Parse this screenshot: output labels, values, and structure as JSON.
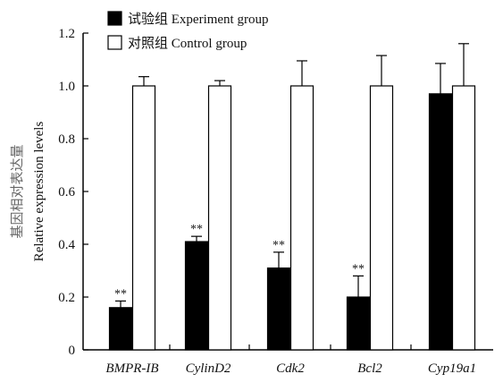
{
  "chart_data": {
    "type": "bar",
    "categories": [
      "BMPR-IB",
      "CylinD2",
      "Cdk2",
      "Bcl2",
      "Cyp19a1"
    ],
    "series": [
      {
        "name": "试验组 Experiment group",
        "values": [
          0.16,
          0.41,
          0.31,
          0.2,
          0.97
        ],
        "errors": [
          0.025,
          0.02,
          0.06,
          0.08,
          0.115
        ],
        "fill": "#000000",
        "significance": [
          "**",
          "**",
          "**",
          "**",
          ""
        ]
      },
      {
        "name": "对照组 Control group",
        "values": [
          1.0,
          1.0,
          1.0,
          1.0,
          1.0
        ],
        "errors": [
          0.035,
          0.02,
          0.095,
          0.115,
          0.16
        ],
        "fill": "#ffffff"
      }
    ],
    "ylabel_cn": "基因相对表达量",
    "ylabel_en": "Relative expression levels",
    "ylim": [
      0,
      1.2
    ],
    "yticks": [
      "0",
      "0.2",
      "0.4",
      "0.6",
      "0.8",
      "1.0",
      "1.2"
    ],
    "grid": false,
    "legend_position": "top-left"
  }
}
